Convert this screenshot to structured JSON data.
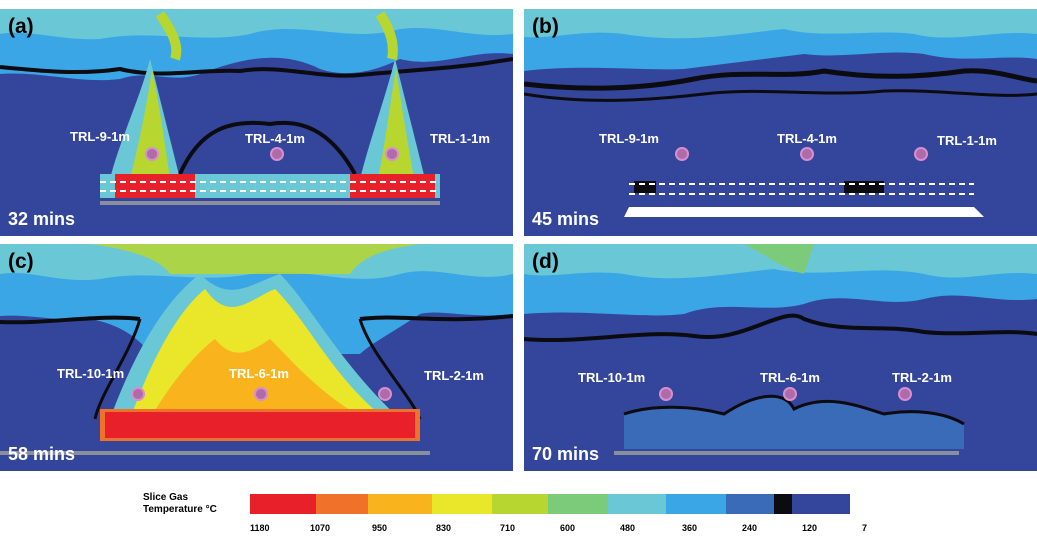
{
  "panels": {
    "a": {
      "label": "(a)",
      "time": "32 mins",
      "probes": [
        "TRL-9-1m",
        "TRL-4-1m",
        "TRL-1-1m"
      ]
    },
    "b": {
      "label": "(b)",
      "time": "45 mins",
      "probes": [
        "TRL-9-1m",
        "TRL-4-1m",
        "TRL-1-1m"
      ]
    },
    "c": {
      "label": "(c)",
      "time": "58 mins",
      "probes": [
        "TRL-10-1m",
        "TRL-6-1m",
        "TRL-2-1m"
      ]
    },
    "d": {
      "label": "(d)",
      "time": "70 mins",
      "probes": [
        "TRL-10-1m",
        "TRL-6-1m",
        "TRL-2-1m"
      ]
    }
  },
  "colorbar": {
    "title_line1": "Slice Gas",
    "title_line2": "Temperature °C",
    "ticks": [
      "1180",
      "1070",
      "950",
      "830",
      "710",
      "600",
      "480",
      "360",
      "240",
      "120",
      "7"
    ],
    "colors": [
      "#e8202a",
      "#f0712a",
      "#f9b31c",
      "#eae62a",
      "#b7d630",
      "#7ccb7a",
      "#6ac8d6",
      "#3aa6e6",
      "#3a6bb8",
      "#0b0b10",
      "#34469c"
    ]
  }
}
